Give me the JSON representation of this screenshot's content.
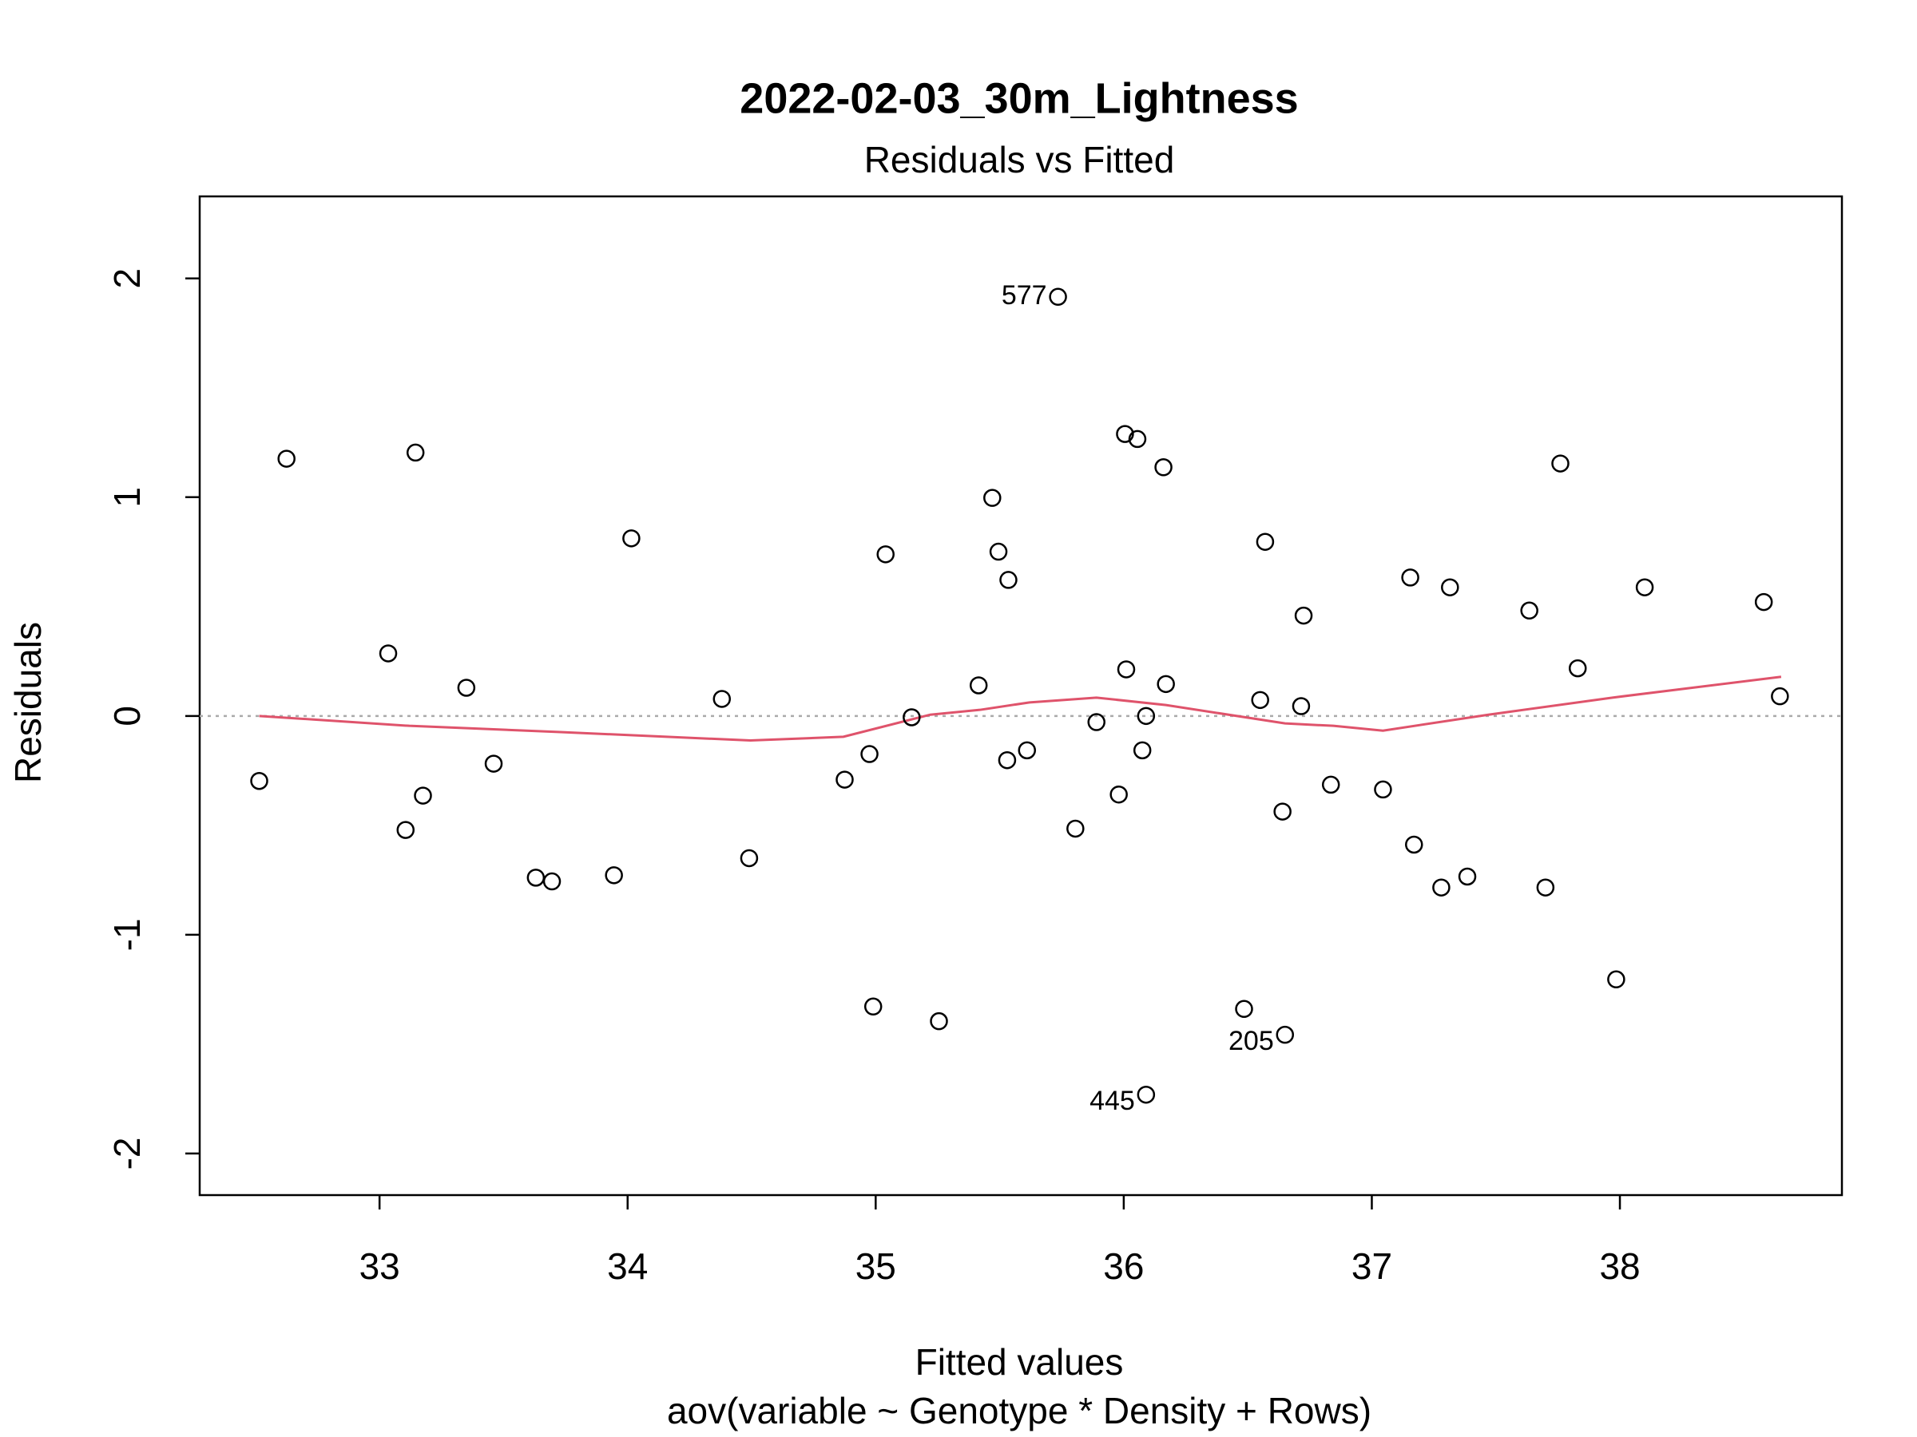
{
  "chart_data": {
    "type": "scatter",
    "title": "2022-02-03_30m_Lightness",
    "subtitle": "Residuals vs Fitted",
    "x_label": "Fitted values",
    "x_sublabel": "aov(variable ~ Genotype * Density + Rows)",
    "y_label": "Residuals",
    "xlim": [
      32.275,
      38.895
    ],
    "ylim": [
      -2.19,
      2.375
    ],
    "xticks": [
      33,
      34,
      35,
      36,
      37,
      38
    ],
    "yticks": [
      -2,
      -1,
      0,
      1,
      2
    ],
    "reference_line": 0,
    "series": [
      {
        "name": "Residuals",
        "color": "#000000",
        "x": [
          32.515,
          32.625,
          33.035,
          33.105,
          33.145,
          33.175,
          33.35,
          33.46,
          33.63,
          33.695,
          33.945,
          34.015,
          34.38,
          34.49,
          34.875,
          34.975,
          34.99,
          35.04,
          35.145,
          35.255,
          35.415,
          35.47,
          35.495,
          35.53,
          35.535,
          35.61,
          35.735,
          35.805,
          35.89,
          35.98,
          36.005,
          36.01,
          36.055,
          36.075,
          36.09,
          36.09,
          36.16,
          36.17,
          36.485,
          36.55,
          36.57,
          36.64,
          36.65,
          36.715,
          36.725,
          36.835,
          37.045,
          37.155,
          37.17,
          37.28,
          37.315,
          37.385,
          37.635,
          37.7,
          37.76,
          37.83,
          37.985,
          38.1,
          38.58,
          38.645
        ],
        "values": [
          -0.297,
          1.176,
          0.286,
          -0.521,
          1.204,
          -0.364,
          0.129,
          -0.218,
          -0.739,
          -0.756,
          -0.728,
          0.812,
          0.078,
          -0.65,
          -0.291,
          -0.174,
          -1.328,
          0.739,
          -0.006,
          -1.395,
          0.14,
          0.997,
          0.751,
          -0.202,
          0.622,
          -0.157,
          1.916,
          -0.515,
          -0.028,
          -0.359,
          1.289,
          0.213,
          1.266,
          -0.157,
          0.0,
          -1.731,
          1.137,
          0.146,
          -1.339,
          0.073,
          0.796,
          -0.437,
          -1.457,
          0.045,
          0.459,
          -0.314,
          -0.336,
          0.633,
          -0.588,
          -0.784,
          0.588,
          -0.734,
          0.482,
          -0.784,
          1.154,
          0.218,
          -1.204,
          0.588,
          0.521,
          0.09
        ],
        "labels": [
          null,
          null,
          null,
          null,
          null,
          null,
          null,
          null,
          null,
          null,
          null,
          null,
          null,
          null,
          null,
          null,
          null,
          null,
          null,
          null,
          null,
          null,
          null,
          null,
          null,
          null,
          "577",
          null,
          null,
          null,
          null,
          null,
          null,
          null,
          null,
          "445",
          null,
          null,
          null,
          null,
          null,
          null,
          "205",
          null,
          null,
          null,
          null,
          null,
          null,
          null,
          null,
          null,
          null,
          null,
          null,
          null,
          null,
          null,
          null,
          null
        ]
      }
    ],
    "smooth": {
      "color": "#DF536B",
      "x": [
        32.515,
        33.12,
        33.72,
        34.495,
        34.87,
        35.22,
        35.42,
        35.62,
        35.89,
        36.17,
        36.65,
        36.845,
        37.045,
        37.47,
        37.97,
        38.65
      ],
      "values": [
        0.0,
        -0.045,
        -0.073,
        -0.112,
        -0.095,
        0.006,
        0.028,
        0.062,
        0.084,
        0.05,
        -0.034,
        -0.045,
        -0.067,
        0.006,
        0.084,
        0.179
      ]
    }
  }
}
